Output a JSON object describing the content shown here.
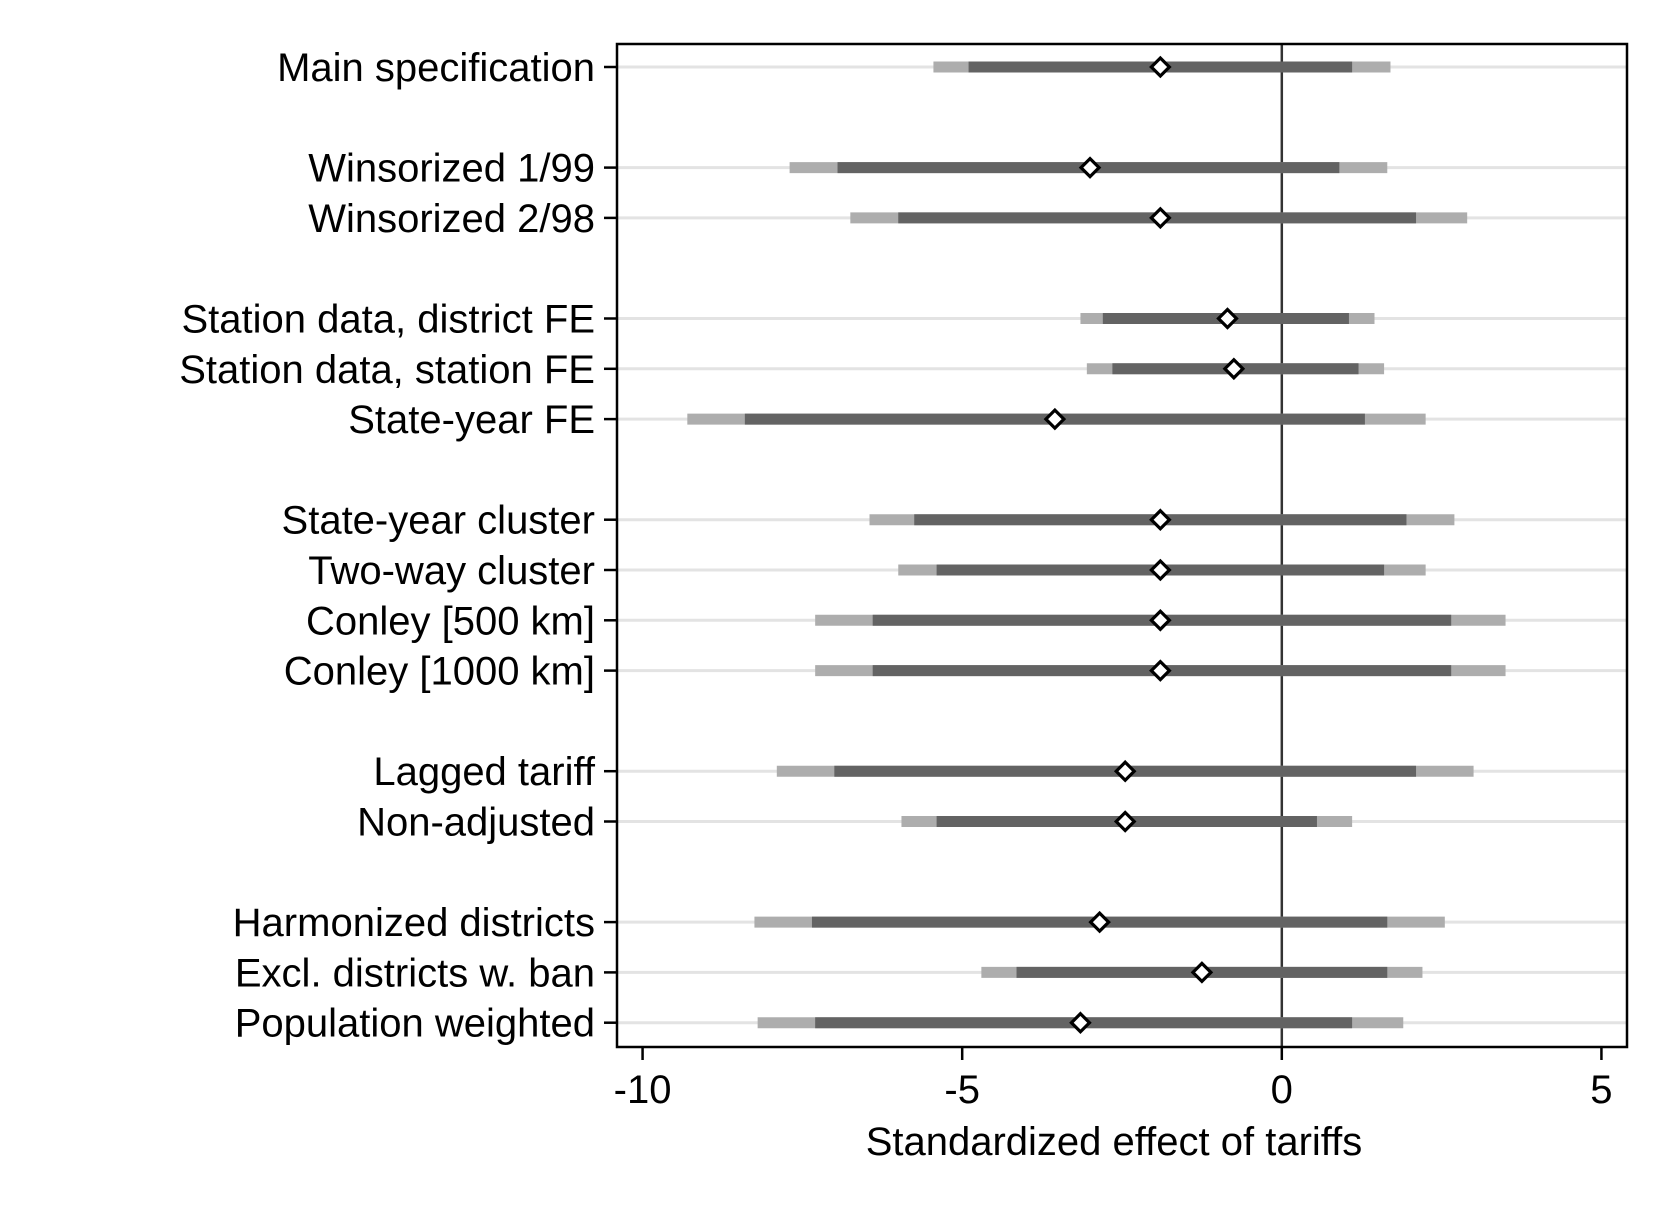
{
  "chart_data": {
    "type": "coefficient-plot",
    "title": "",
    "xlabel": "Standardized effect of tariffs",
    "ylabel": "",
    "xlim": [
      -10.4,
      5.4
    ],
    "xticks": [
      -10,
      -5,
      0,
      5
    ],
    "xtick_labels": [
      "-10",
      "-5",
      "0",
      "5"
    ],
    "reference_line": 0,
    "grid": "horizontal row lines",
    "colors": {
      "ci_outer": "#adadad",
      "ci_inner": "#636363",
      "row_line": "#e3e3e3",
      "marker_fill": "#ffffff",
      "marker_stroke": "#000000",
      "zero_line": "#333333",
      "frame": "#000000"
    },
    "series": [
      {
        "label": "Main specification",
        "group": 1,
        "estimate": -1.9,
        "ci_inner": [
          -4.9,
          1.1
        ],
        "ci_outer": [
          -5.45,
          1.7
        ]
      },
      {
        "label": "Winsorized 1/99",
        "group": 2,
        "estimate": -3.0,
        "ci_inner": [
          -6.95,
          0.9
        ],
        "ci_outer": [
          -7.7,
          1.65
        ]
      },
      {
        "label": "Winsorized 2/98",
        "group": 2,
        "estimate": -1.9,
        "ci_inner": [
          -6.0,
          2.1
        ],
        "ci_outer": [
          -6.75,
          2.9
        ]
      },
      {
        "label": "Station data, district FE",
        "group": 3,
        "estimate": -0.85,
        "ci_inner": [
          -2.8,
          1.05
        ],
        "ci_outer": [
          -3.15,
          1.45
        ]
      },
      {
        "label": "Station data, station FE",
        "group": 3,
        "estimate": -0.75,
        "ci_inner": [
          -2.65,
          1.2
        ],
        "ci_outer": [
          -3.05,
          1.6
        ]
      },
      {
        "label": "State-year FE",
        "group": 3,
        "estimate": -3.55,
        "ci_inner": [
          -8.4,
          1.3
        ],
        "ci_outer": [
          -9.3,
          2.25
        ]
      },
      {
        "label": "State-year cluster",
        "group": 4,
        "estimate": -1.9,
        "ci_inner": [
          -5.75,
          1.95
        ],
        "ci_outer": [
          -6.45,
          2.7
        ]
      },
      {
        "label": "Two-way cluster",
        "group": 4,
        "estimate": -1.9,
        "ci_inner": [
          -5.4,
          1.6
        ],
        "ci_outer": [
          -6.0,
          2.25
        ]
      },
      {
        "label": "Conley [500 km]",
        "group": 4,
        "estimate": -1.9,
        "ci_inner": [
          -6.4,
          2.65
        ],
        "ci_outer": [
          -7.3,
          3.5
        ]
      },
      {
        "label": "Conley [1000 km]",
        "group": 4,
        "estimate": -1.9,
        "ci_inner": [
          -6.4,
          2.65
        ],
        "ci_outer": [
          -7.3,
          3.5
        ]
      },
      {
        "label": "Lagged tariff",
        "group": 5,
        "estimate": -2.45,
        "ci_inner": [
          -7.0,
          2.1
        ],
        "ci_outer": [
          -7.9,
          3.0
        ]
      },
      {
        "label": "Non-adjusted",
        "group": 5,
        "estimate": -2.45,
        "ci_inner": [
          -5.4,
          0.55
        ],
        "ci_outer": [
          -5.95,
          1.1
        ]
      },
      {
        "label": "Harmonized districts",
        "group": 6,
        "estimate": -2.85,
        "ci_inner": [
          -7.35,
          1.65
        ],
        "ci_outer": [
          -8.25,
          2.55
        ]
      },
      {
        "label": "Excl. districts w. ban",
        "group": 6,
        "estimate": -1.25,
        "ci_inner": [
          -4.15,
          1.65
        ],
        "ci_outer": [
          -4.7,
          2.2
        ]
      },
      {
        "label": "Population weighted",
        "group": 6,
        "estimate": -3.15,
        "ci_inner": [
          -7.3,
          1.1
        ],
        "ci_outer": [
          -8.2,
          1.9
        ]
      }
    ]
  }
}
